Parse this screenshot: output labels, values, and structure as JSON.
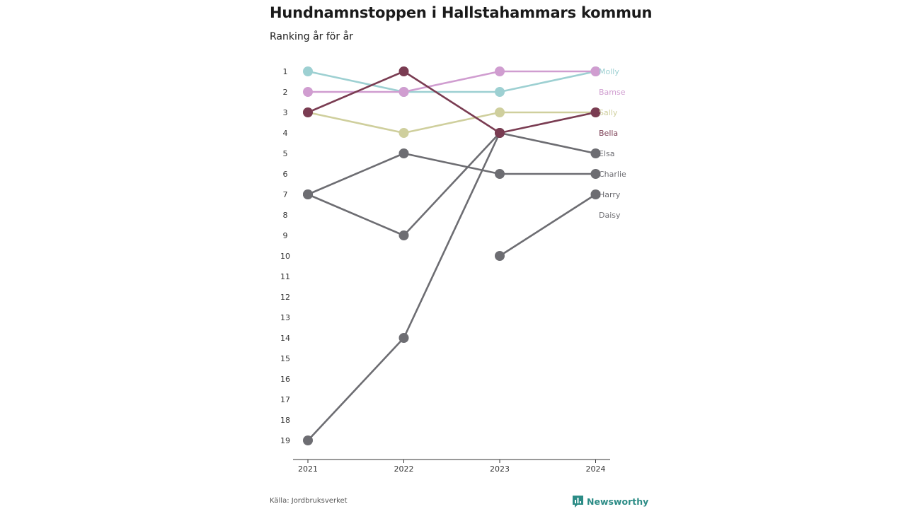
{
  "title": "Hundnamnstoppen i Hallstahammars kommun",
  "subtitle": "Ranking år för år",
  "source": "Källa: Jordbruksverket",
  "brand": "Newsworthy",
  "colors": {
    "Molly": "#9dd0d2",
    "Bamse": "#d09dd0",
    "Sally": "#cfcf9d",
    "Bella": "#7a3c52",
    "Elsa": "#6d6d72",
    "Charlie": "#6d6d72",
    "Harry": "#6d6d72",
    "Daisy": "#6d6d72",
    "brand": "#2c8c86"
  },
  "chart_data": {
    "type": "line",
    "x": [
      2021,
      2022,
      2023,
      2024
    ],
    "x_tick_labels": [
      "2021",
      "2022",
      "2023",
      "2024"
    ],
    "y_tick_labels": [
      "1",
      "2",
      "3",
      "4",
      "5",
      "6",
      "7",
      "8",
      "9",
      "10",
      "11",
      "12",
      "13",
      "14",
      "15",
      "16",
      "17",
      "18",
      "19"
    ],
    "ylim": [
      1,
      19
    ],
    "y_reversed": true,
    "legend": "end-labels",
    "series": [
      {
        "name": "Daisy",
        "values": [
          19,
          14,
          4,
          5
        ]
      },
      {
        "name": "Harry",
        "values": [
          null,
          null,
          10,
          7
        ]
      },
      {
        "name": "Charlie",
        "values": [
          7,
          5,
          6,
          6
        ]
      },
      {
        "name": "Elsa",
        "values": [
          7,
          9,
          4,
          null
        ]
      },
      {
        "name": "Sally",
        "values": [
          3,
          4,
          3,
          3
        ]
      },
      {
        "name": "Molly",
        "values": [
          1,
          2,
          2,
          1
        ]
      },
      {
        "name": "Bamse",
        "values": [
          2,
          2,
          1,
          1
        ]
      },
      {
        "name": "Bella",
        "values": [
          3,
          1,
          4,
          3
        ]
      }
    ],
    "labels": [
      "Molly",
      "Bamse",
      "Sally",
      "Bella",
      "Elsa",
      "Charlie",
      "Harry",
      "Daisy"
    ]
  }
}
